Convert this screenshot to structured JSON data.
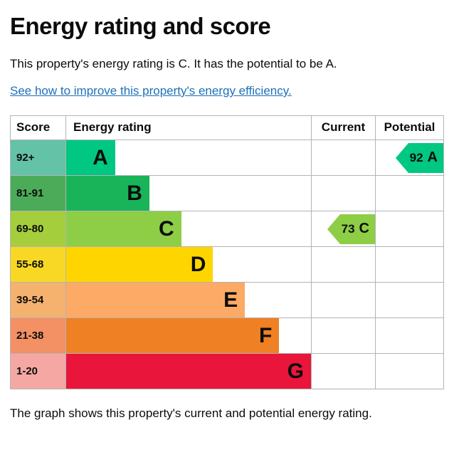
{
  "title": "Energy rating and score",
  "intro": "This property's energy rating is C. It has the potential to be A.",
  "link_text": "See how to improve this property's energy efficiency",
  "caption": "The graph shows this property's current and potential energy rating.",
  "headers": {
    "score": "Score",
    "rating": "Energy rating",
    "current": "Current",
    "potential": "Potential"
  },
  "bands": [
    {
      "range": "92+",
      "letter": "A",
      "width_pct": 20,
      "score_bg": "#64c2a7",
      "bar_bg": "#00c781",
      "text": "#0b0c0c"
    },
    {
      "range": "81-91",
      "letter": "B",
      "width_pct": 34,
      "score_bg": "#4cab58",
      "bar_bg": "#19b459",
      "text": "#0b0c0c"
    },
    {
      "range": "69-80",
      "letter": "C",
      "width_pct": 47,
      "score_bg": "#a5ce3c",
      "bar_bg": "#8dce46",
      "text": "#0b0c0c"
    },
    {
      "range": "55-68",
      "letter": "D",
      "width_pct": 60,
      "score_bg": "#f8d825",
      "bar_bg": "#ffd500",
      "text": "#0b0c0c"
    },
    {
      "range": "39-54",
      "letter": "E",
      "width_pct": 73,
      "score_bg": "#f5b16e",
      "bar_bg": "#fcaa65",
      "text": "#0b0c0c"
    },
    {
      "range": "21-38",
      "letter": "F",
      "width_pct": 87,
      "score_bg": "#f39064",
      "bar_bg": "#ef8023",
      "text": "#0b0c0c"
    },
    {
      "range": "1-20",
      "letter": "G",
      "width_pct": 100,
      "score_bg": "#f5a8a3",
      "bar_bg": "#e9153b",
      "text": "#0b0c0c"
    }
  ],
  "current": {
    "band_index": 2,
    "score": 73,
    "letter": "C",
    "color": "#8dce46"
  },
  "potential": {
    "band_index": 0,
    "score": 92,
    "letter": "A",
    "color": "#00c781"
  }
}
